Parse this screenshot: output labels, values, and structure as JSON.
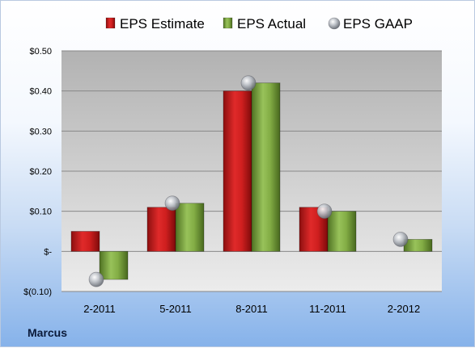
{
  "company": "Marcus",
  "chart_data": {
    "type": "bar",
    "title": "",
    "xlabel": "",
    "ylabel": "",
    "categories": [
      "2-2011",
      "5-2011",
      "8-2011",
      "11-2011",
      "2-2012"
    ],
    "series": [
      {
        "name": "EPS Estimate",
        "kind": "bar",
        "color": "#cc1c1c",
        "values": [
          0.05,
          0.11,
          0.4,
          0.11,
          null
        ]
      },
      {
        "name": "EPS Actual",
        "kind": "bar",
        "color": "#7aa43a",
        "values": [
          -0.07,
          0.12,
          0.42,
          0.1,
          0.03
        ]
      },
      {
        "name": "EPS GAAP",
        "kind": "marker",
        "color": "#a9adb5",
        "values": [
          -0.07,
          0.12,
          0.42,
          0.1,
          0.03
        ]
      }
    ],
    "ylim": [
      -0.1,
      0.5
    ],
    "yticks": [
      {
        "value": 0.5,
        "label": "$0.50"
      },
      {
        "value": 0.4,
        "label": "$0.40"
      },
      {
        "value": 0.3,
        "label": "$0.30"
      },
      {
        "value": 0.2,
        "label": "$0.20"
      },
      {
        "value": 0.1,
        "label": "$0.10"
      },
      {
        "value": 0.0,
        "label": "$-"
      },
      {
        "value": -0.1,
        "label": "$(0.10)"
      }
    ],
    "grid": true,
    "legend": "top"
  }
}
